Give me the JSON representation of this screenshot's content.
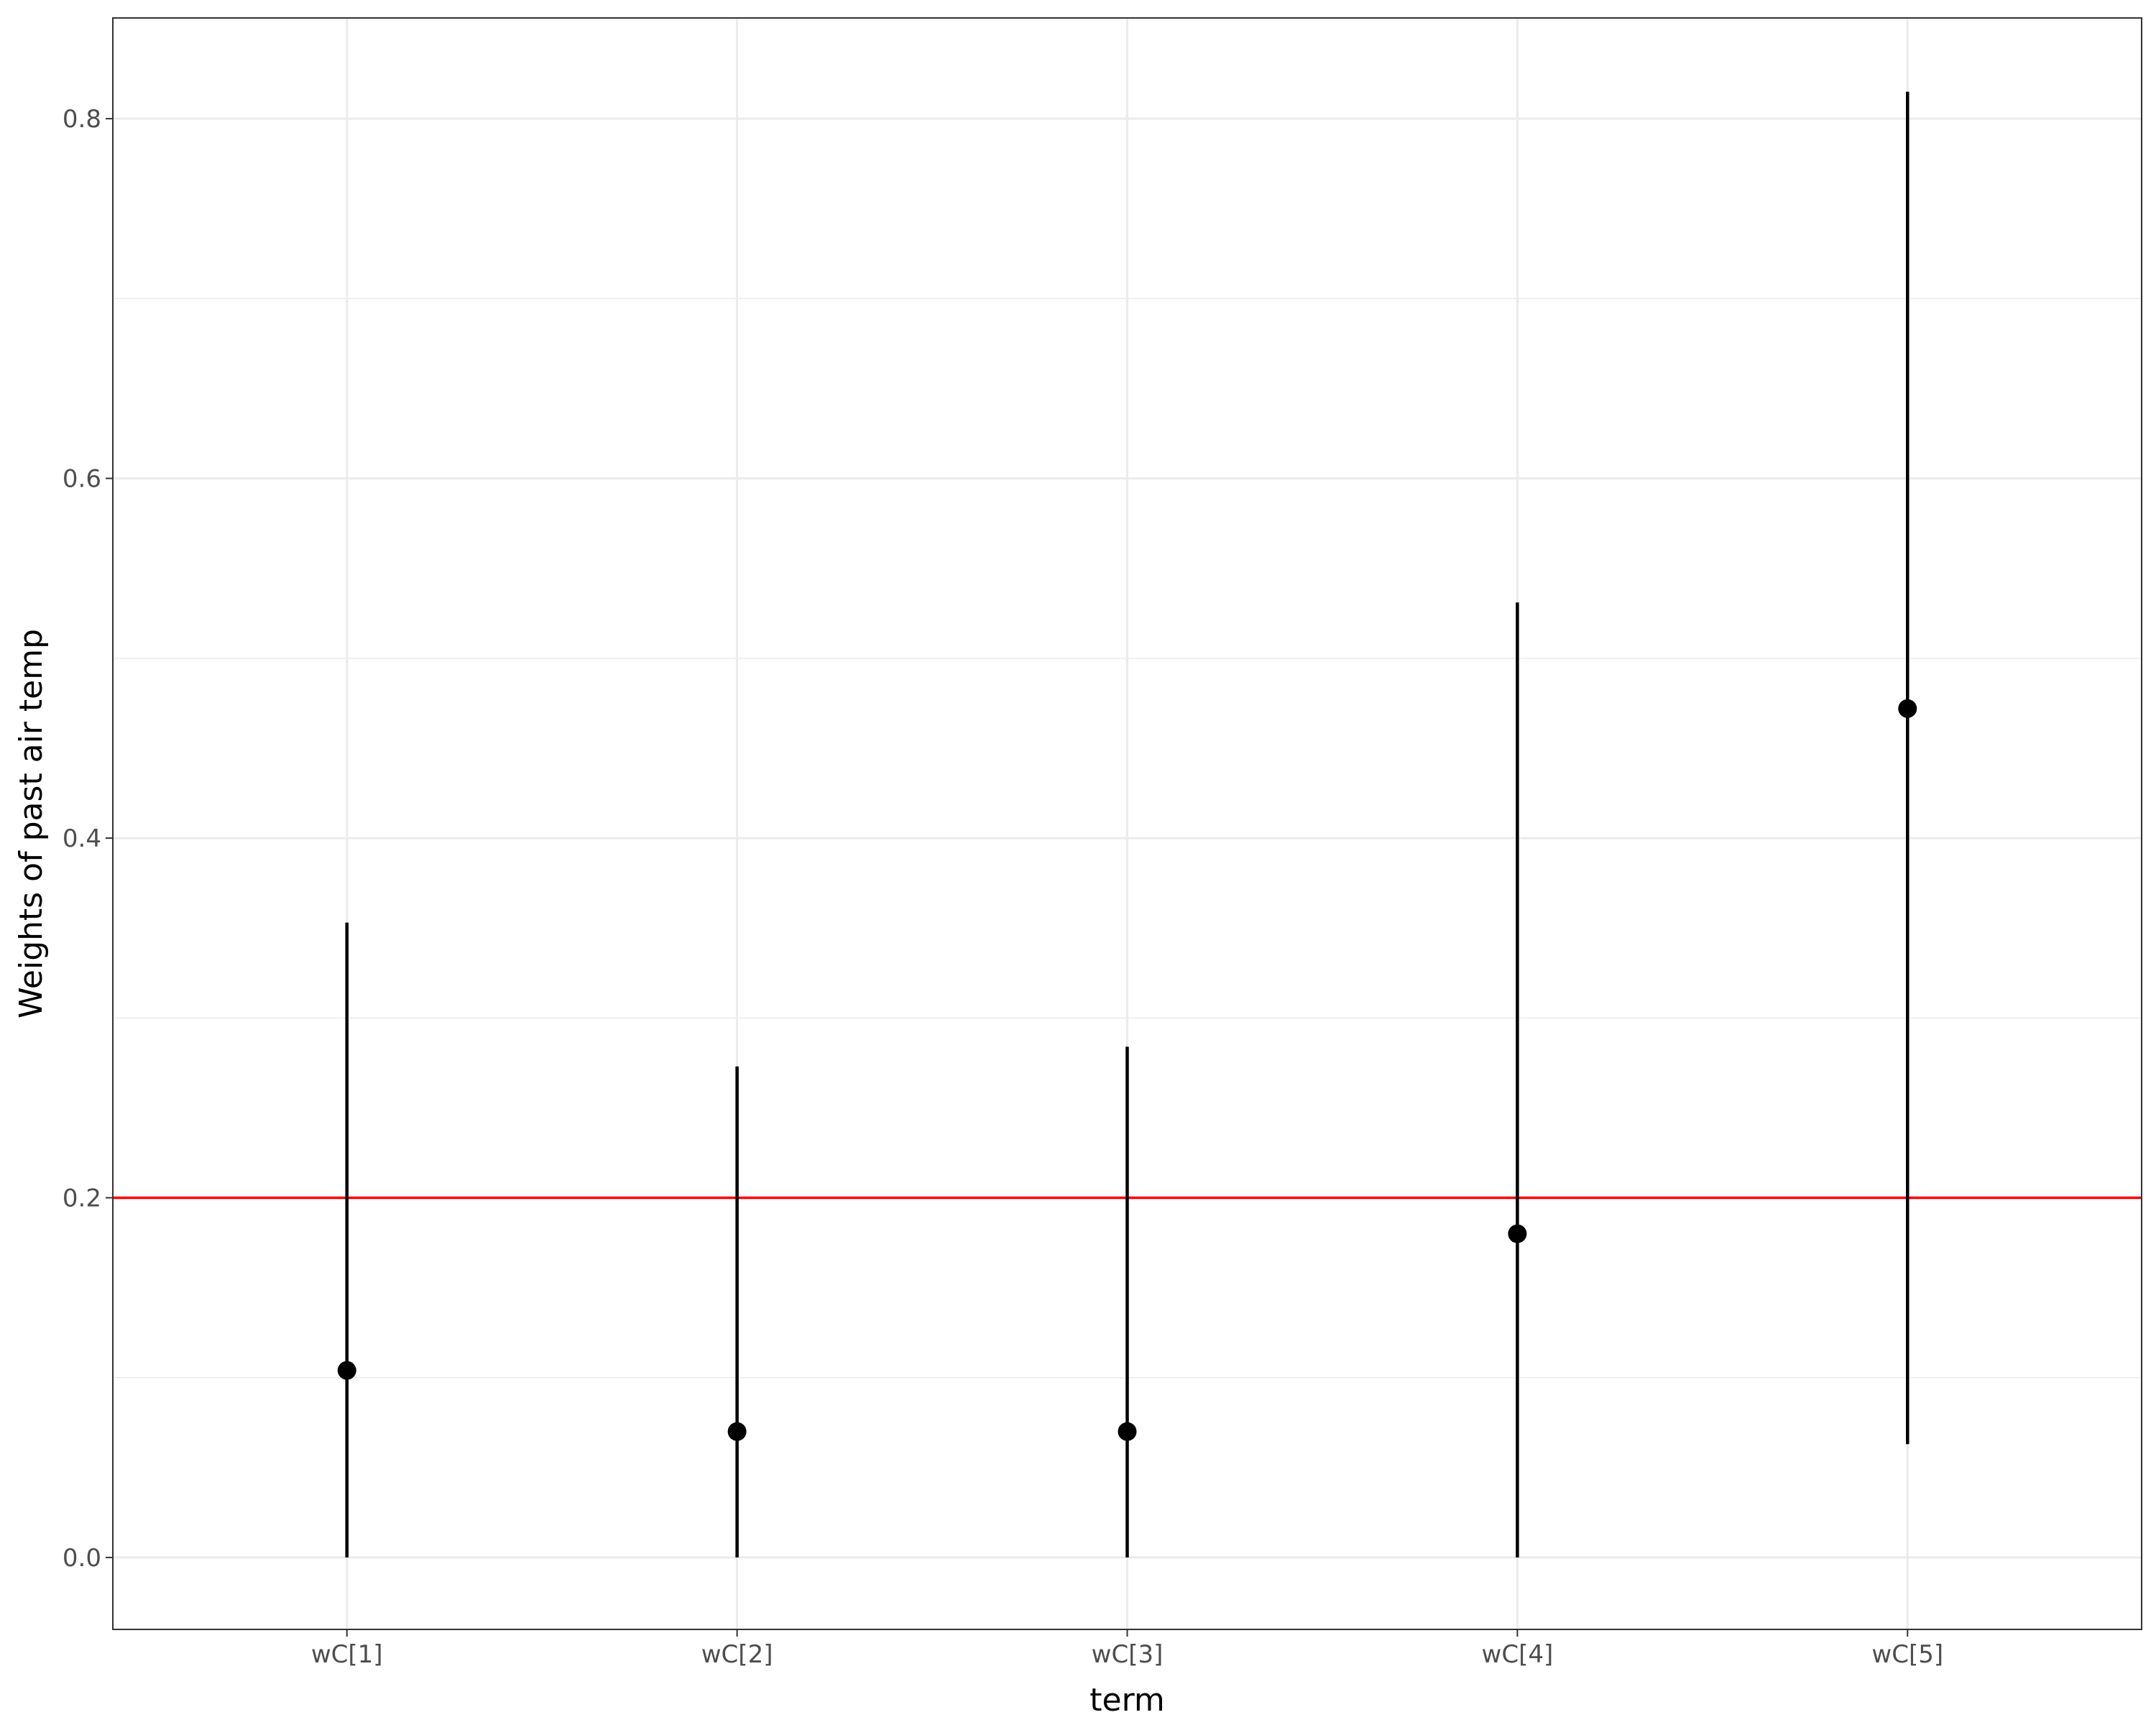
{
  "chart_data": {
    "type": "pointrange",
    "xlabel": "term",
    "ylabel": "Weights of past air temp",
    "categories": [
      "wC[1]",
      "wC[2]",
      "wC[3]",
      "wC[4]",
      "wC[5]"
    ],
    "estimates": [
      0.104,
      0.07,
      0.07,
      0.18,
      0.472
    ],
    "lower": [
      0.0,
      0.0,
      0.0,
      0.0,
      0.063
    ],
    "upper": [
      0.353,
      0.273,
      0.284,
      0.531,
      0.815
    ],
    "ylim": [
      -0.04,
      0.856
    ],
    "yticks": [
      0.0,
      0.2,
      0.4,
      0.6,
      0.8
    ],
    "ytick_labels": [
      "0.0",
      "0.2",
      "0.4",
      "0.6",
      "0.8"
    ],
    "reference_line": {
      "y": 0.2,
      "color": "#ff0000"
    },
    "grid": true,
    "legend": "none",
    "colors": {
      "points": "#000000",
      "grid": "#ebebeb",
      "border": "#333333"
    }
  }
}
